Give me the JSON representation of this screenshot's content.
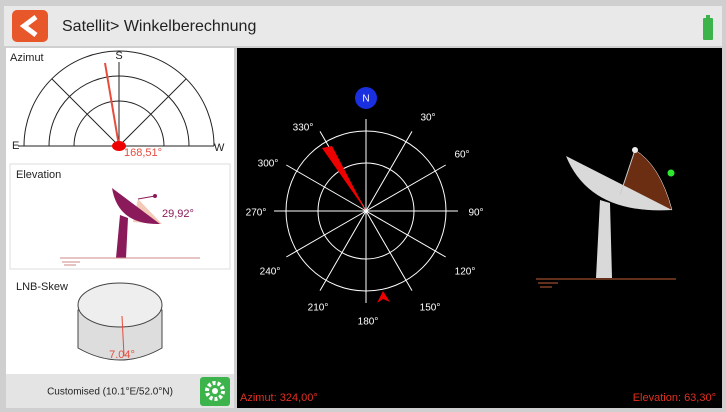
{
  "header": {
    "title": "Satellit> Winkelberechnung"
  },
  "left": {
    "azimuth": {
      "label": "Azimut",
      "south": "S",
      "east": "E",
      "west": "W",
      "value": "168,51°"
    },
    "elevation": {
      "label": "Elevation",
      "value": "29,92°"
    },
    "lnb_skew": {
      "label": "LNB-Skew",
      "value": "7.04°"
    },
    "location": "Customised (10.1°E/52.0°N)"
  },
  "compass": {
    "north": "N",
    "labels": [
      "330°",
      "30°",
      "60°",
      "300°",
      "270°",
      "90°",
      "240°",
      "120°",
      "210°",
      "150°",
      "180°"
    ]
  },
  "status": {
    "azimuth": "Azimut: 324,00°",
    "elevation": "Elevation: 63,30°"
  }
}
